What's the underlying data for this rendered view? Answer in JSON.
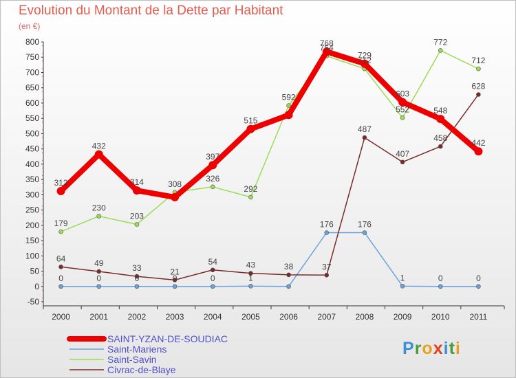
{
  "chart_data": {
    "type": "line",
    "title": "Evolution du Montant de la Dette par Habitant",
    "subtitle": "(en €)",
    "x": [
      "2000",
      "2001",
      "2002",
      "2003",
      "2004",
      "2005",
      "2006",
      "2007",
      "2008",
      "2009",
      "2010",
      "2011"
    ],
    "ylim": [
      -50,
      800
    ],
    "yticks": [
      -50,
      0,
      50,
      100,
      150,
      200,
      250,
      300,
      350,
      400,
      450,
      500,
      550,
      600,
      650,
      700,
      750,
      800
    ],
    "grid": false,
    "legend_position": "bottom-left",
    "series": [
      {
        "name": "SAINT-YZAN-DE-SOUDIAC",
        "color": "#ee0000",
        "values": [
          312,
          432,
          314,
          292,
          397,
          515,
          561,
          768,
          729,
          603,
          548,
          442
        ],
        "labels": [
          "312",
          "432",
          "314",
          "",
          "397",
          "515",
          "",
          "768",
          "729",
          "603",
          "548",
          "442"
        ]
      },
      {
        "name": "Saint-Mariens",
        "color": "#6ba3d6",
        "values": [
          0,
          0,
          0,
          0,
          0,
          1,
          0,
          176,
          176,
          1,
          0,
          0
        ],
        "labels": [
          "0",
          "0",
          "0",
          "0",
          "0",
          "1",
          "",
          "176",
          "176",
          "1",
          "0",
          "0"
        ]
      },
      {
        "name": "Saint-Savin",
        "color": "#99dd55",
        "values": [
          179,
          230,
          203,
          308,
          326,
          292,
          592,
          754,
          712,
          552,
          772,
          712
        ],
        "labels": [
          "179",
          "230",
          "203",
          "308",
          "326",
          "292",
          "592",
          "754",
          "712",
          "552",
          "772",
          "712"
        ]
      },
      {
        "name": "Civrac-de-Blaye",
        "color": "#7a2a2a",
        "values": [
          64,
          49,
          33,
          21,
          54,
          43,
          38,
          37,
          487,
          407,
          458,
          628
        ],
        "labels": [
          "64",
          "49",
          "33",
          "21",
          "54",
          "43",
          "38",
          "37",
          "487",
          "407",
          "458",
          "628"
        ]
      }
    ]
  },
  "logo": {
    "text": "Proxiti",
    "colors": [
      "#3c8fd6",
      "#4a9a3a",
      "#e8a020",
      "#e04020",
      "#3c8fd6",
      "#4a9a3a",
      "#e8a020"
    ]
  }
}
